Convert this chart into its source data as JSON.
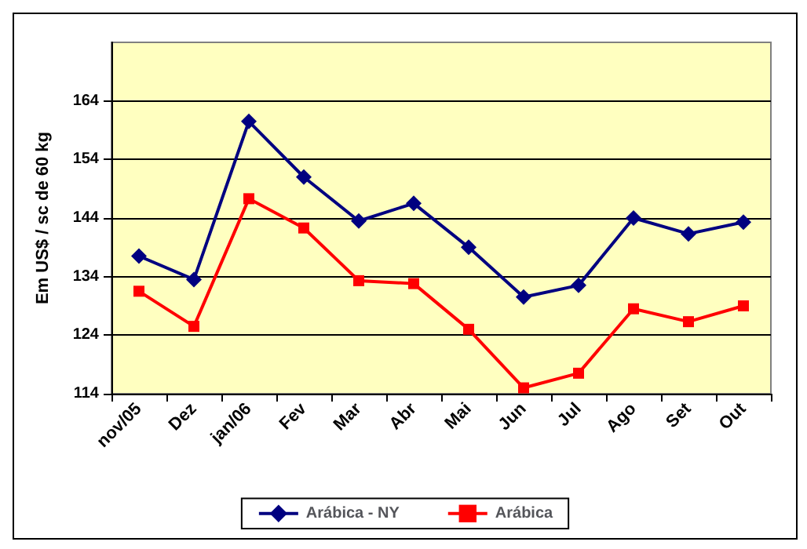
{
  "chart_data": {
    "type": "line",
    "ylabel": "Em US$ / sc de 60 kg",
    "categories": [
      "nov/05",
      "Dez",
      "jan/06",
      "Fev",
      "Mar",
      "Abr",
      "Mai",
      "Jun",
      "Jul",
      "Ago",
      "Set",
      "Out"
    ],
    "series": [
      {
        "name": "Arábica - NY",
        "color": "#000080",
        "marker": "diamond",
        "values": [
          137.5,
          133.5,
          160.5,
          151,
          143.5,
          146.5,
          139,
          130.5,
          132.5,
          144,
          141.3,
          143.3
        ]
      },
      {
        "name": "Arábica",
        "color": "#ff0000",
        "marker": "square",
        "values": [
          131.5,
          125.5,
          147.3,
          142.3,
          133.3,
          132.8,
          125,
          115,
          117.5,
          128.5,
          126.3,
          129
        ]
      }
    ],
    "ylim": [
      114,
      174
    ],
    "yticks": [
      114,
      124,
      134,
      144,
      154,
      164
    ],
    "grid": "y",
    "legend": "bottom",
    "line_style": "solid"
  }
}
